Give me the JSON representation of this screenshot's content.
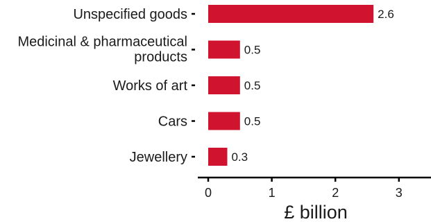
{
  "chart_data": {
    "type": "bar",
    "orientation": "horizontal",
    "categories": [
      "Unspecified goods",
      "Medicinal & pharmaceutical products",
      "Works of art",
      "Cars",
      "Jewellery"
    ],
    "category_label_lines": [
      [
        "Unspecified goods"
      ],
      [
        "Medicinal & pharmaceutical",
        "products"
      ],
      [
        "Works of art"
      ],
      [
        "Cars"
      ],
      [
        "Jewellery"
      ]
    ],
    "values": [
      2.6,
      0.5,
      0.5,
      0.5,
      0.3
    ],
    "value_labels": [
      "2.6",
      "0.5",
      "0.5",
      "0.5",
      "0.3"
    ],
    "xlabel": "£ billion",
    "ylabel": "",
    "xlim": [
      0,
      3.5
    ],
    "xticks": [
      0,
      1,
      2,
      3
    ],
    "xtick_labels": [
      "0",
      "1",
      "2",
      "3"
    ],
    "grid": false,
    "bar_color": "#d0142f"
  }
}
